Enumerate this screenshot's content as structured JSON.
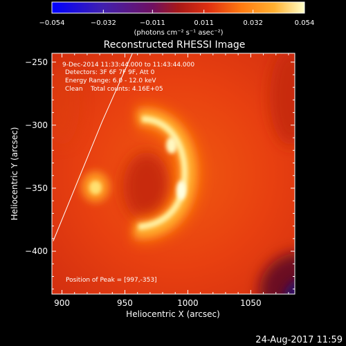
{
  "colorbar": {
    "tick_labels": [
      "-0.054",
      "-0.032",
      "-0.011",
      "0.011",
      "0.032",
      "0.054"
    ],
    "units_label": "(photons cm⁻² s⁻¹ asec⁻²)",
    "colors": [
      "#0000ff",
      "#3010c0",
      "#601080",
      "#a01818",
      "#d03010",
      "#f06010",
      "#ff9020",
      "#ffc040",
      "#ffffc0"
    ]
  },
  "chart_data": {
    "type": "heatmap",
    "title": "Reconstructed RHESSI Image",
    "xlabel": "Heliocentric X (arcsec)",
    "ylabel": "Heliocentric Y (arcsec)",
    "xlim": [
      892,
      1085
    ],
    "ylim": [
      -434,
      -243
    ],
    "x_ticks": [
      900,
      950,
      1000,
      1050
    ],
    "y_ticks": [
      -250,
      -300,
      -350,
      -400
    ],
    "annotations": [
      "9-Dec-2014 11:33:44.000 to 11:43:44.000",
      "Detectors: 3F 6F 7F 9F, Att 0",
      "Energy Range: 6.0 - 12.0 keV",
      "Clean    Total counts: 4.16E+05"
    ],
    "peak_label": "Position of Peak = [997,-353]",
    "peak_position": [
      997,
      -353
    ],
    "total_counts": "4.16E+05",
    "energy_range_kev": [
      6.0,
      12.0
    ],
    "colorbar_range": [
      -0.054,
      0.054
    ],
    "limb_line": [
      [
        893,
        -392
      ],
      [
        932,
        -297
      ],
      [
        956,
        -243
      ]
    ]
  },
  "footer": {
    "timestamp": "24-Aug-2017 11:59"
  }
}
